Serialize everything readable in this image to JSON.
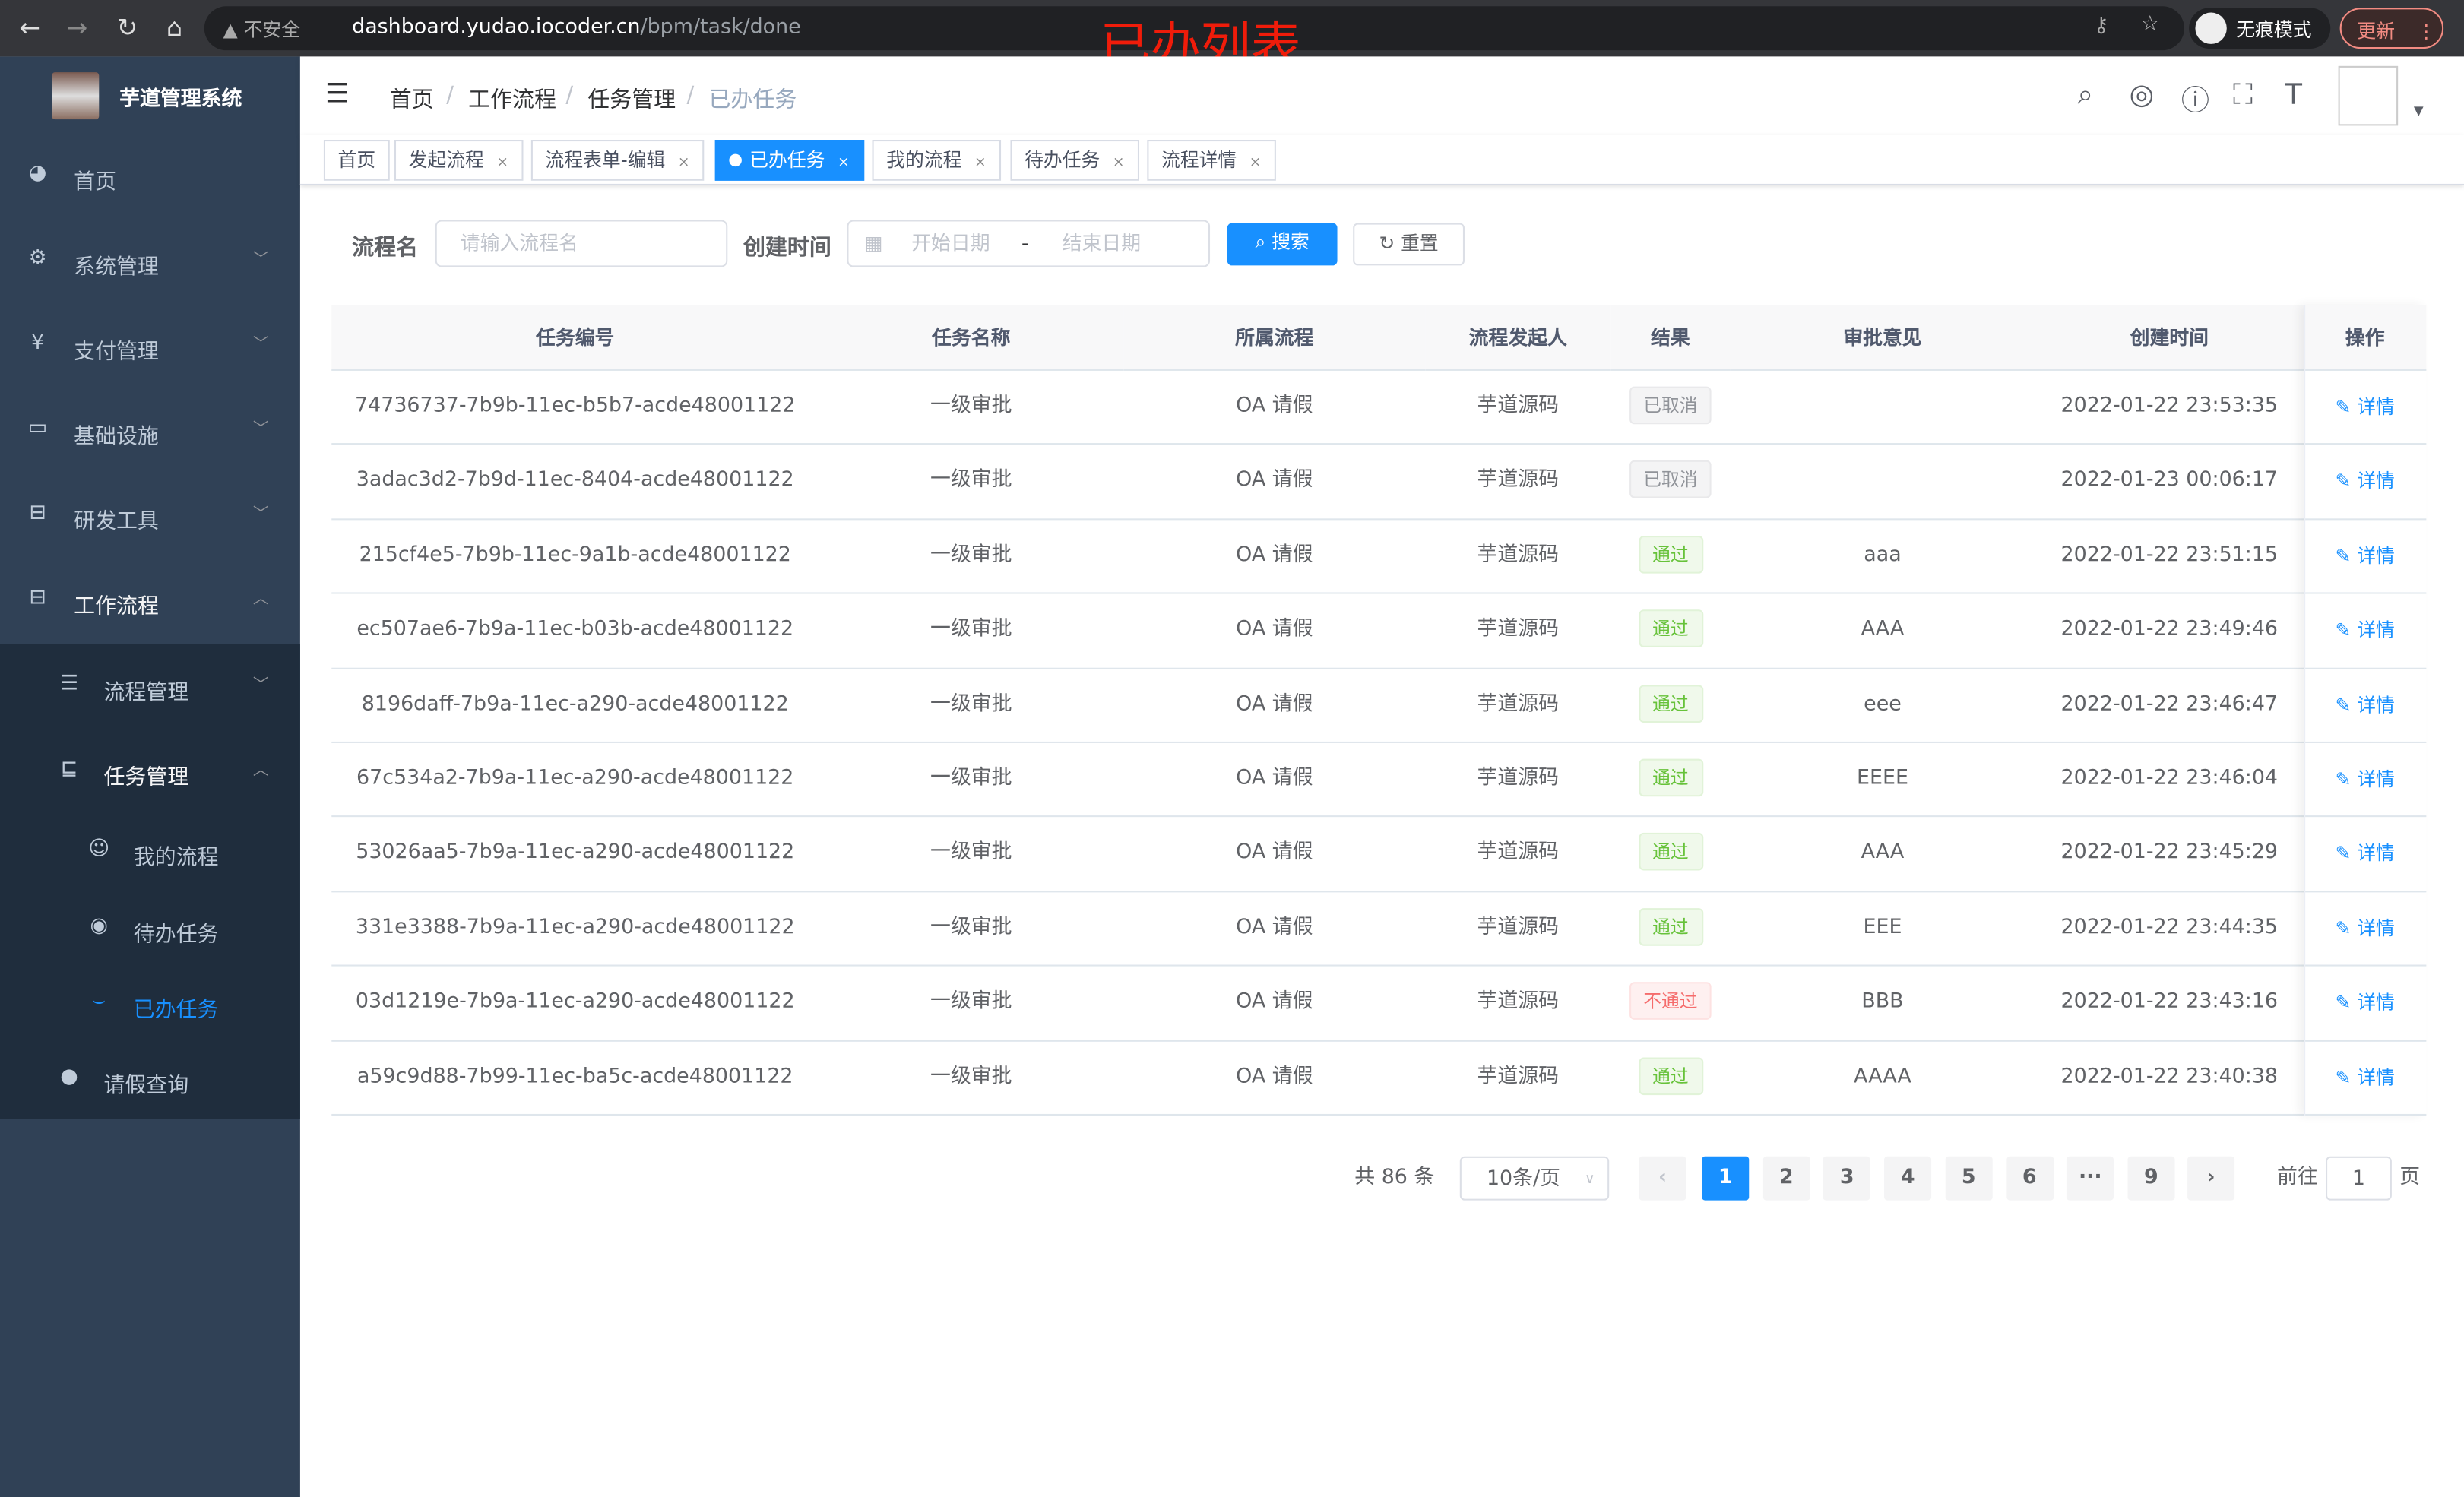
{
  "browser": {
    "insecure_label": "不安全",
    "url_host": "dashboard.yudao.iocoder.cn",
    "url_path": "/bpm/task/done",
    "incognito_label": "无痕模式",
    "update_label": "更新"
  },
  "annotation": "已办列表",
  "app": {
    "name": "芋道管理系统"
  },
  "sidebar": {
    "items": [
      {
        "label": "首页",
        "icon": "dashboard-icon"
      },
      {
        "label": "系统管理",
        "icon": "gear-icon"
      },
      {
        "label": "支付管理",
        "icon": "yen-icon"
      },
      {
        "label": "基础设施",
        "icon": "monitor-icon"
      },
      {
        "label": "研发工具",
        "icon": "toolbox-icon"
      },
      {
        "label": "工作流程",
        "icon": "toolbox-icon"
      }
    ],
    "sub_items": [
      {
        "label": "流程管理",
        "icon": "list-icon"
      },
      {
        "label": "任务管理",
        "icon": "task-icon"
      },
      {
        "label": "我的流程",
        "icon": "face-icon"
      },
      {
        "label": "待办任务",
        "icon": "eye-icon"
      },
      {
        "label": "已办任务",
        "icon": "eye-closed-icon"
      },
      {
        "label": "请假查询",
        "icon": "user-icon"
      }
    ]
  },
  "breadcrumb": [
    "首页",
    "工作流程",
    "任务管理",
    "已办任务"
  ],
  "tags": [
    "首页",
    "发起流程",
    "流程表单-编辑",
    "已办任务",
    "我的流程",
    "待办任务",
    "流程详情"
  ],
  "filters": {
    "name_label": "流程名",
    "name_placeholder": "请输入流程名",
    "time_label": "创建时间",
    "start_placeholder": "开始日期",
    "separator": "-",
    "end_placeholder": "结束日期",
    "search": "搜索",
    "reset": "重置"
  },
  "table": {
    "columns": [
      "任务编号",
      "任务名称",
      "所属流程",
      "流程发起人",
      "结果",
      "审批意见",
      "创建时间",
      "操作"
    ],
    "rows": [
      {
        "id": "74736737-7b9b-11ec-b5b7-acde48001122",
        "name": "一级审批",
        "process": "OA 请假",
        "starter": "芋道源码",
        "result": "已取消",
        "status": "cancel",
        "comment": "",
        "time": "2022-01-22 23:53:35",
        "op": "详情"
      },
      {
        "id": "3adac3d2-7b9d-11ec-8404-acde48001122",
        "name": "一级审批",
        "process": "OA 请假",
        "starter": "芋道源码",
        "result": "已取消",
        "status": "cancel",
        "comment": "",
        "time": "2022-01-23 00:06:17",
        "op": "详情"
      },
      {
        "id": "215cf4e5-7b9b-11ec-9a1b-acde48001122",
        "name": "一级审批",
        "process": "OA 请假",
        "starter": "芋道源码",
        "result": "通过",
        "status": "pass",
        "comment": "aaa",
        "time": "2022-01-22 23:51:15",
        "op": "详情"
      },
      {
        "id": "ec507ae6-7b9a-11ec-b03b-acde48001122",
        "name": "一级审批",
        "process": "OA 请假",
        "starter": "芋道源码",
        "result": "通过",
        "status": "pass",
        "comment": "AAA",
        "time": "2022-01-22 23:49:46",
        "op": "详情"
      },
      {
        "id": "8196daff-7b9a-11ec-a290-acde48001122",
        "name": "一级审批",
        "process": "OA 请假",
        "starter": "芋道源码",
        "result": "通过",
        "status": "pass",
        "comment": "eee",
        "time": "2022-01-22 23:46:47",
        "op": "详情"
      },
      {
        "id": "67c534a2-7b9a-11ec-a290-acde48001122",
        "name": "一级审批",
        "process": "OA 请假",
        "starter": "芋道源码",
        "result": "通过",
        "status": "pass",
        "comment": "EEEE",
        "time": "2022-01-22 23:46:04",
        "op": "详情"
      },
      {
        "id": "53026aa5-7b9a-11ec-a290-acde48001122",
        "name": "一级审批",
        "process": "OA 请假",
        "starter": "芋道源码",
        "result": "通过",
        "status": "pass",
        "comment": "AAA",
        "time": "2022-01-22 23:45:29",
        "op": "详情"
      },
      {
        "id": "331e3388-7b9a-11ec-a290-acde48001122",
        "name": "一级审批",
        "process": "OA 请假",
        "starter": "芋道源码",
        "result": "通过",
        "status": "pass",
        "comment": "EEE",
        "time": "2022-01-22 23:44:35",
        "op": "详情"
      },
      {
        "id": "03d1219e-7b9a-11ec-a290-acde48001122",
        "name": "一级审批",
        "process": "OA 请假",
        "starter": "芋道源码",
        "result": "不通过",
        "status": "reject",
        "comment": "BBB",
        "time": "2022-01-22 23:43:16",
        "op": "详情"
      },
      {
        "id": "a59c9d88-7b99-11ec-ba5c-acde48001122",
        "name": "一级审批",
        "process": "OA 请假",
        "starter": "芋道源码",
        "result": "通过",
        "status": "pass",
        "comment": "AAAA",
        "time": "2022-01-22 23:40:38",
        "op": "详情"
      }
    ]
  },
  "pagination": {
    "total": "共 86 条",
    "page_size": "10条/页",
    "pages": [
      "1",
      "2",
      "3",
      "4",
      "5",
      "6",
      "···",
      "9"
    ],
    "current": "1",
    "goto_label": "前往",
    "goto_value": "1",
    "page_suffix": "页"
  },
  "colors": {
    "accent": "#1890ff",
    "sidebar": "#304156",
    "submenu": "#1f2d3d",
    "pass": "#67c23a",
    "reject": "#f56c6c"
  }
}
